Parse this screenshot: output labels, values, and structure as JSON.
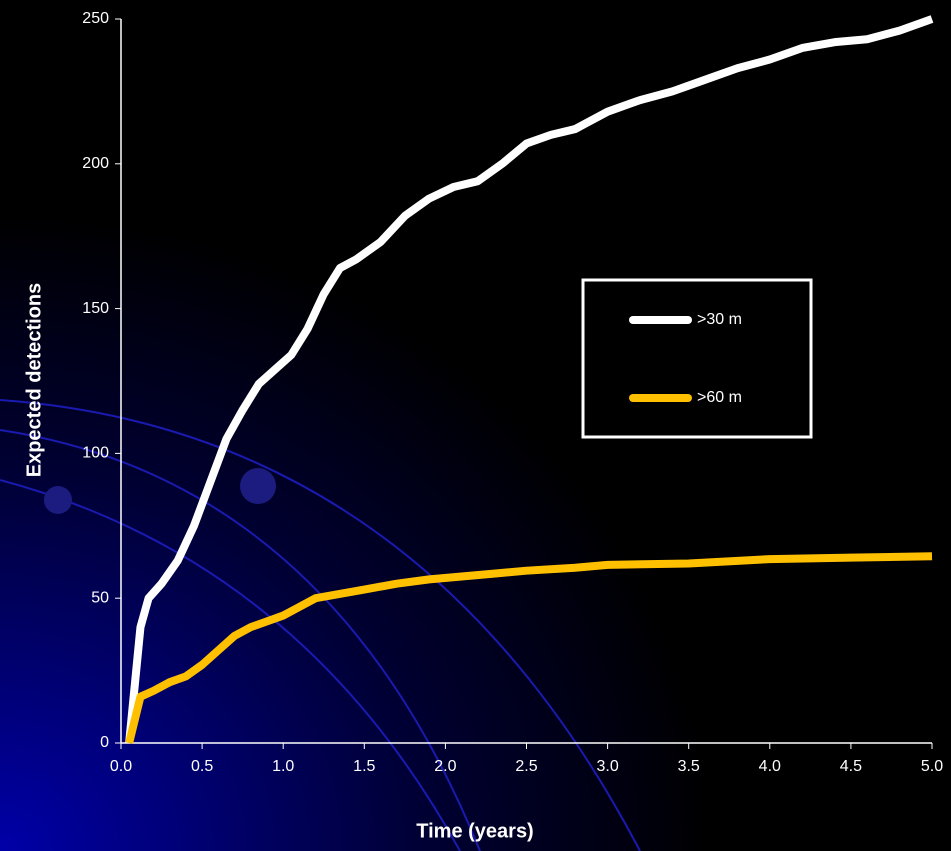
{
  "chart_data": {
    "type": "line",
    "x_label": "Time (years)",
    "y_label": "Expected detections",
    "xlim": [
      0,
      5
    ],
    "xticks": [
      {
        "value": 0,
        "label": "0.0"
      },
      0.5,
      {
        "value": 1,
        "label": "1.0"
      },
      1.5,
      {
        "value": 2,
        "label": "2.0"
      },
      2.5,
      {
        "value": 3,
        "label": "3.0"
      },
      3.5,
      {
        "value": 4,
        "label": "4.0"
      },
      4.5,
      {
        "value": 5,
        "label": "5.0"
      }
    ],
    "ylim": [
      0,
      250
    ],
    "yticks": [
      0,
      50,
      100,
      150,
      200,
      250
    ],
    "legend": "right",
    "series": [
      {
        "name": ">30 m",
        "color": "#ffffff",
        "x": [
          0.05,
          0.12,
          0.17,
          0.25,
          0.35,
          0.45,
          0.55,
          0.65,
          0.75,
          0.85,
          0.95,
          1.05,
          1.15,
          1.25,
          1.35,
          1.45,
          1.6,
          1.75,
          1.9,
          2.05,
          2.2,
          2.35,
          2.5,
          2.65,
          2.8,
          3.0,
          3.2,
          3.4,
          3.6,
          3.8,
          4.0,
          4.2,
          4.4,
          4.6,
          4.8,
          5.0
        ],
        "values": [
          0,
          40,
          50,
          55,
          63,
          75,
          90,
          105,
          115,
          124,
          129,
          134,
          143,
          155,
          164,
          167,
          173,
          182,
          188,
          192,
          194,
          200,
          207,
          210,
          212,
          218,
          222,
          225,
          229,
          233,
          236,
          240,
          242,
          243,
          246,
          250
        ]
      },
      {
        "name": ">60 m",
        "color": "#ffc000",
        "x": [
          0.05,
          0.12,
          0.2,
          0.3,
          0.4,
          0.5,
          0.6,
          0.7,
          0.8,
          0.9,
          1.0,
          1.1,
          1.2,
          1.3,
          1.5,
          1.7,
          1.9,
          2.1,
          2.3,
          2.5,
          2.8,
          3.0,
          3.5,
          4.0,
          4.5,
          5.0
        ],
        "values": [
          0,
          16,
          18,
          21,
          23,
          27,
          32,
          37,
          40,
          42,
          44,
          47,
          50,
          51,
          53,
          55,
          56.5,
          57.5,
          58.5,
          59.5,
          60.5,
          61.5,
          62,
          63.5,
          64,
          64.5
        ]
      }
    ]
  }
}
